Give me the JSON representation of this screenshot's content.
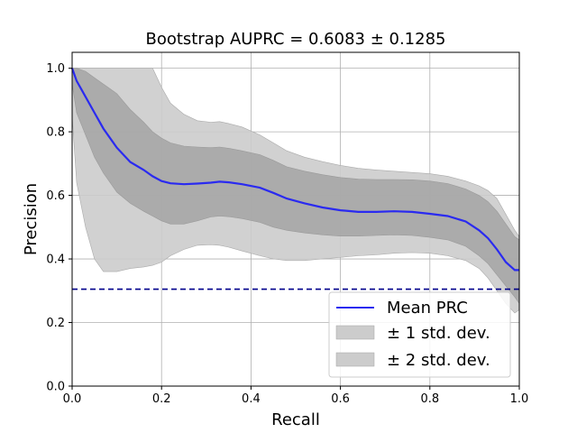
{
  "chart_data": {
    "type": "line",
    "title": "Bootstrap AUPRC = 0.6083 ± 0.1285",
    "xlabel": "Recall",
    "ylabel": "Precision",
    "xlim": [
      0,
      1
    ],
    "ylim": [
      0,
      1.05
    ],
    "xticks": [
      "0.0",
      "0.2",
      "0.4",
      "0.6",
      "0.8",
      "1.0"
    ],
    "yticks": [
      "0.0",
      "0.2",
      "0.4",
      "0.6",
      "0.8",
      "1.0"
    ],
    "grid": true,
    "legend_position": "bottom-right",
    "baseline": 0.305,
    "colors": {
      "mean": "#2a2af0",
      "band1": "#a6a6a6",
      "band2": "#cccccc",
      "baseline": "#00008b"
    },
    "series": [
      {
        "name": "Mean PRC",
        "x": [
          0,
          0.01,
          0.03,
          0.05,
          0.07,
          0.1,
          0.13,
          0.16,
          0.18,
          0.2,
          0.22,
          0.25,
          0.28,
          0.31,
          0.33,
          0.35,
          0.38,
          0.42,
          0.45,
          0.48,
          0.52,
          0.56,
          0.6,
          0.64,
          0.68,
          0.72,
          0.76,
          0.8,
          0.84,
          0.88,
          0.91,
          0.93,
          0.95,
          0.97,
          0.99,
          1.0
        ],
        "y": [
          1.0,
          0.96,
          0.91,
          0.86,
          0.81,
          0.75,
          0.705,
          0.68,
          0.66,
          0.645,
          0.638,
          0.635,
          0.637,
          0.64,
          0.643,
          0.641,
          0.635,
          0.624,
          0.608,
          0.59,
          0.575,
          0.562,
          0.553,
          0.548,
          0.548,
          0.55,
          0.548,
          0.542,
          0.535,
          0.518,
          0.49,
          0.465,
          0.43,
          0.39,
          0.365,
          0.365
        ]
      },
      {
        "name": "± 1 std. dev.",
        "x": [
          0,
          0.01,
          0.03,
          0.05,
          0.07,
          0.1,
          0.13,
          0.16,
          0.18,
          0.2,
          0.22,
          0.25,
          0.28,
          0.31,
          0.33,
          0.35,
          0.38,
          0.42,
          0.45,
          0.48,
          0.52,
          0.56,
          0.6,
          0.64,
          0.68,
          0.72,
          0.76,
          0.8,
          0.84,
          0.88,
          0.91,
          0.93,
          0.95,
          0.97,
          0.99,
          1.0
        ],
        "upper": [
          1.0,
          1.0,
          0.99,
          0.97,
          0.95,
          0.92,
          0.87,
          0.83,
          0.8,
          0.78,
          0.765,
          0.755,
          0.752,
          0.75,
          0.752,
          0.748,
          0.74,
          0.728,
          0.71,
          0.69,
          0.676,
          0.665,
          0.656,
          0.651,
          0.65,
          0.65,
          0.649,
          0.645,
          0.637,
          0.62,
          0.6,
          0.58,
          0.55,
          0.51,
          0.47,
          0.46
        ],
        "lower": [
          0.95,
          0.86,
          0.79,
          0.72,
          0.67,
          0.61,
          0.575,
          0.55,
          0.535,
          0.52,
          0.51,
          0.51,
          0.52,
          0.532,
          0.535,
          0.533,
          0.527,
          0.515,
          0.5,
          0.49,
          0.482,
          0.476,
          0.472,
          0.472,
          0.474,
          0.476,
          0.474,
          0.468,
          0.46,
          0.44,
          0.41,
          0.385,
          0.35,
          0.315,
          0.28,
          0.26
        ]
      },
      {
        "name": "± 2 std. dev.",
        "x": [
          0,
          0.01,
          0.03,
          0.05,
          0.07,
          0.1,
          0.13,
          0.16,
          0.18,
          0.2,
          0.22,
          0.25,
          0.28,
          0.31,
          0.33,
          0.35,
          0.38,
          0.42,
          0.45,
          0.48,
          0.52,
          0.56,
          0.6,
          0.64,
          0.68,
          0.72,
          0.76,
          0.8,
          0.84,
          0.88,
          0.91,
          0.93,
          0.95,
          0.97,
          0.99,
          1.0
        ],
        "upper": [
          1.0,
          1.0,
          1.0,
          1.0,
          1.0,
          1.0,
          1.0,
          1.0,
          1.0,
          0.94,
          0.89,
          0.855,
          0.835,
          0.83,
          0.832,
          0.826,
          0.815,
          0.79,
          0.765,
          0.74,
          0.72,
          0.706,
          0.694,
          0.685,
          0.68,
          0.676,
          0.672,
          0.668,
          0.66,
          0.645,
          0.63,
          0.615,
          0.59,
          0.54,
          0.49,
          0.47
        ],
        "lower": [
          0.85,
          0.64,
          0.5,
          0.4,
          0.36,
          0.36,
          0.37,
          0.375,
          0.38,
          0.39,
          0.41,
          0.43,
          0.443,
          0.445,
          0.443,
          0.437,
          0.425,
          0.41,
          0.4,
          0.395,
          0.395,
          0.4,
          0.405,
          0.41,
          0.413,
          0.418,
          0.42,
          0.418,
          0.41,
          0.395,
          0.37,
          0.34,
          0.3,
          0.26,
          0.23,
          0.24
        ]
      }
    ]
  }
}
